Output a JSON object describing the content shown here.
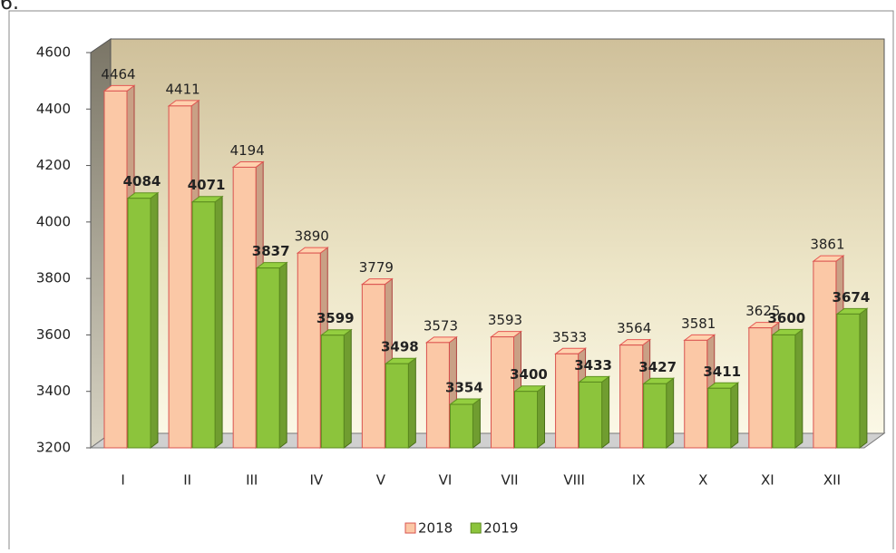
{
  "heading": "6.",
  "chart_data": {
    "type": "bar3d",
    "categories": [
      "I",
      "II",
      "III",
      "IV",
      "V",
      "VI",
      "VII",
      "VIII",
      "IX",
      "X",
      "XI",
      "XII"
    ],
    "series": [
      {
        "name": "2018",
        "color": "#fbc8a6",
        "values": [
          4464,
          4411,
          4194,
          3890,
          3779,
          3573,
          3593,
          3533,
          3564,
          3581,
          3625,
          3861
        ]
      },
      {
        "name": "2019",
        "color": "#8cc43c",
        "values": [
          4084,
          4071,
          3837,
          3599,
          3498,
          3354,
          3400,
          3433,
          3427,
          3411,
          3600,
          3674
        ]
      }
    ],
    "ylim": [
      3200,
      4600
    ],
    "yticks": [
      3200,
      3400,
      3600,
      3800,
      4000,
      4200,
      4400,
      4600
    ],
    "legend": "bottom"
  }
}
